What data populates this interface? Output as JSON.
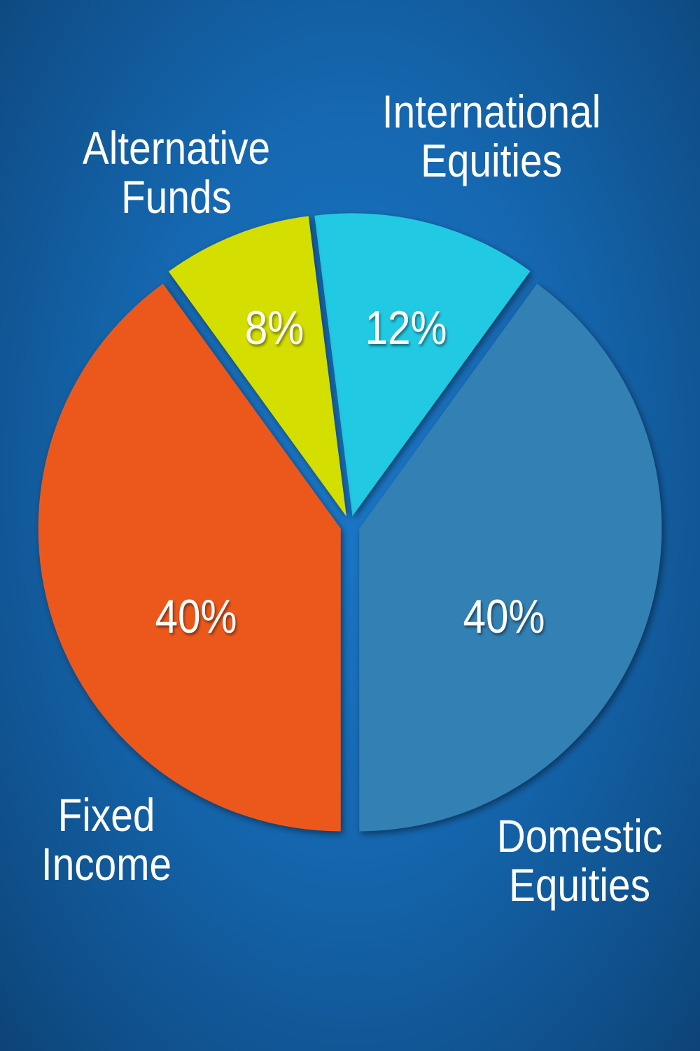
{
  "chart_data": {
    "type": "pie",
    "exploded": true,
    "slices": [
      {
        "label": "International Equities",
        "value": 12,
        "display": "12%",
        "color": "#24c9e3"
      },
      {
        "label": "Domestic Equities",
        "value": 40,
        "display": "40%",
        "color": "#3280b4"
      },
      {
        "label": "Fixed Income",
        "value": 40,
        "display": "40%",
        "color": "#ec581e"
      },
      {
        "label": "Alternative Funds",
        "value": 8,
        "display": "8%",
        "color": "#d4de00"
      }
    ],
    "background_color": "#1567b0"
  }
}
